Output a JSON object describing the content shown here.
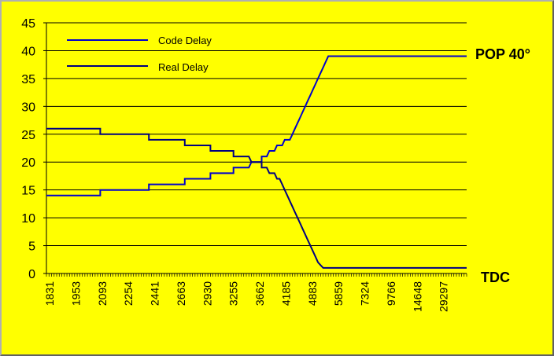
{
  "chart_data": {
    "type": "line",
    "title": "",
    "xlabel": "",
    "ylabel": "",
    "ylim": [
      0,
      45
    ],
    "yticks": [
      0,
      5,
      10,
      15,
      20,
      25,
      30,
      35,
      40,
      45
    ],
    "x_tick_labels": [
      "1831",
      "1953",
      "2093",
      "2254",
      "2441",
      "2663",
      "2930",
      "3255",
      "3662",
      "4185",
      "4883",
      "5859",
      "7324",
      "9766",
      "14648",
      "29297"
    ],
    "grid": "horizontal",
    "legend_position": "top-left",
    "series": [
      {
        "name": "Code Delay",
        "color": "#0000cc",
        "points": [
          [
            0,
            14
          ],
          [
            21,
            14
          ],
          [
            21,
            15
          ],
          [
            40,
            15
          ],
          [
            40,
            16
          ],
          [
            54,
            16
          ],
          [
            54,
            17
          ],
          [
            64,
            17
          ],
          [
            64,
            18
          ],
          [
            73,
            18
          ],
          [
            73,
            19
          ],
          [
            79,
            19
          ],
          [
            80,
            20
          ],
          [
            84,
            20
          ],
          [
            84,
            21
          ],
          [
            86,
            21
          ],
          [
            87,
            22
          ],
          [
            89,
            22
          ],
          [
            90,
            23
          ],
          [
            92,
            23
          ],
          [
            93,
            24
          ],
          [
            95,
            24
          ],
          [
            96,
            25
          ],
          [
            97,
            26
          ],
          [
            98,
            27
          ],
          [
            99,
            28
          ],
          [
            100,
            29
          ],
          [
            101,
            30
          ],
          [
            102,
            31
          ],
          [
            103,
            32
          ],
          [
            104,
            33
          ],
          [
            105,
            34
          ],
          [
            106,
            35
          ],
          [
            107,
            36
          ],
          [
            108,
            37
          ],
          [
            109,
            38
          ],
          [
            110,
            39
          ],
          [
            164,
            39
          ]
        ]
      },
      {
        "name": "Real Delay",
        "color": "#000080",
        "points": [
          [
            0,
            26
          ],
          [
            21,
            26
          ],
          [
            21,
            25
          ],
          [
            40,
            25
          ],
          [
            40,
            24
          ],
          [
            54,
            24
          ],
          [
            54,
            23
          ],
          [
            64,
            23
          ],
          [
            64,
            22
          ],
          [
            73,
            22
          ],
          [
            73,
            21
          ],
          [
            79,
            21
          ],
          [
            80,
            20
          ],
          [
            84,
            20
          ],
          [
            84,
            19
          ],
          [
            86,
            19
          ],
          [
            87,
            18
          ],
          [
            89,
            18
          ],
          [
            90,
            17
          ],
          [
            91,
            17
          ],
          [
            92,
            16
          ],
          [
            93,
            15
          ],
          [
            94,
            14
          ],
          [
            95,
            13
          ],
          [
            96,
            12
          ],
          [
            97,
            11
          ],
          [
            98,
            10
          ],
          [
            99,
            9
          ],
          [
            100,
            8
          ],
          [
            101,
            7
          ],
          [
            102,
            6
          ],
          [
            103,
            5
          ],
          [
            104,
            4
          ],
          [
            105,
            3
          ],
          [
            106,
            2
          ],
          [
            107,
            1.5
          ],
          [
            108,
            1
          ],
          [
            164,
            1
          ]
        ]
      }
    ],
    "annotations": [
      {
        "text": "POP 40°",
        "y": 40
      },
      {
        "text": "TDC",
        "y": 0
      }
    ]
  }
}
